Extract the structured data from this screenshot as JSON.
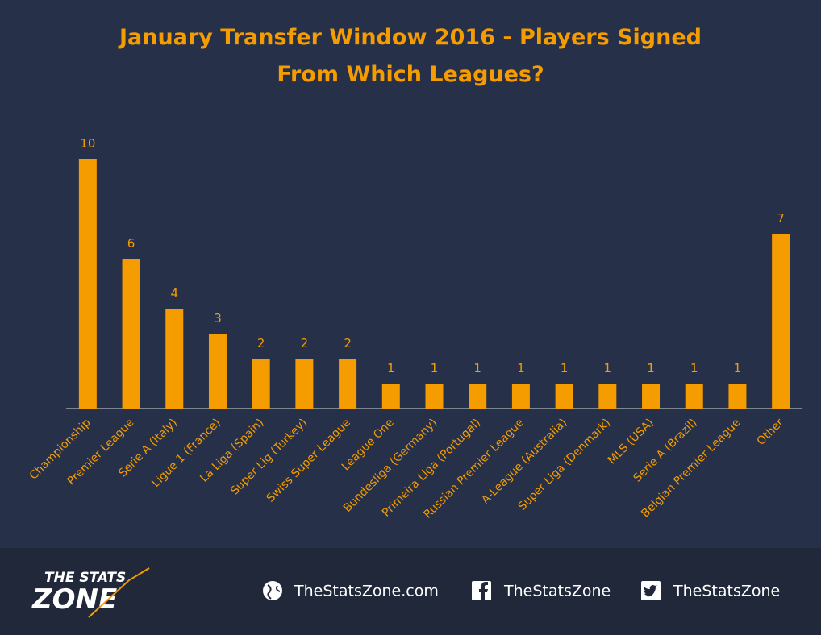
{
  "chart_data": {
    "type": "bar",
    "title": "January Transfer Window 2016 - Players Signed From Which Leagues?",
    "categories": [
      "Championship",
      "Premier League",
      "Serie A (Italy)",
      "Ligue 1 (France)",
      "La Liga (Spain)",
      "Super Lig (Turkey)",
      "Swiss Super League",
      "League One",
      "Bundesliga (Germany)",
      "Primeira Liga (Portugal)",
      "Russian Premier League",
      "A-League (Australia)",
      "Super Liga (Denmark)",
      "MLS (USA)",
      "Serie A (Brazil)",
      "Belgian Premier League",
      "Other"
    ],
    "values": [
      10,
      6,
      4,
      3,
      2,
      2,
      2,
      1,
      1,
      1,
      1,
      1,
      1,
      1,
      1,
      1,
      7
    ],
    "color": "#f59c00"
  },
  "footer": {
    "logo_top": "THE STATS",
    "logo_bottom": "ZONE",
    "website": "TheStatsZone.com",
    "facebook": "TheStatsZone",
    "twitter": "TheStatsZone"
  }
}
